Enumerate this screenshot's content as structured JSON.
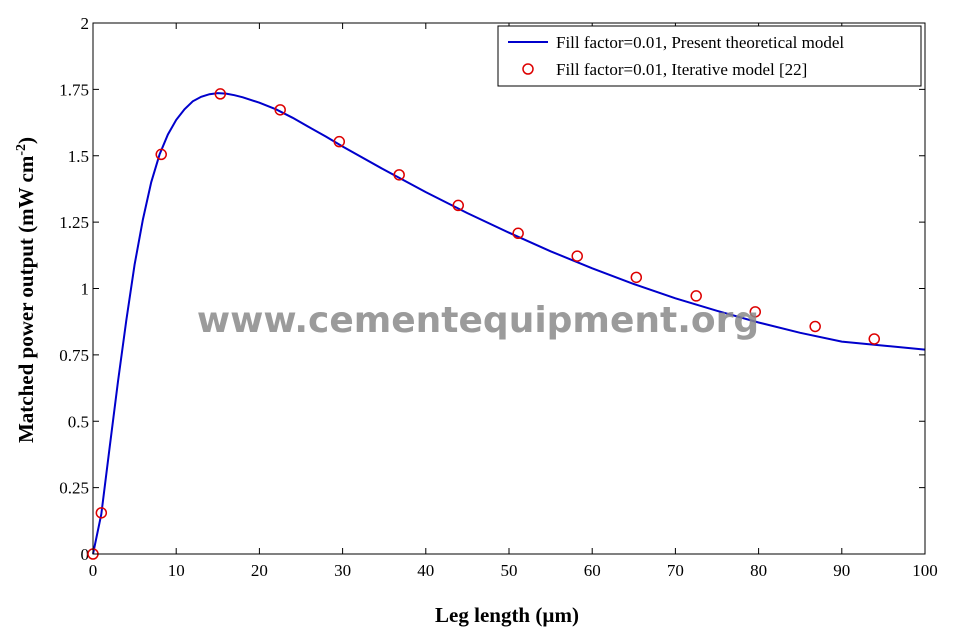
{
  "chart_data": {
    "type": "line",
    "xlabel": "Leg length (µm)",
    "ylabel_main": "Matched power output (mW cm",
    "ylabel_sup": "-2",
    "ylabel_close": ")",
    "xlim": [
      0,
      100
    ],
    "ylim": [
      0,
      2
    ],
    "xticks": [
      0,
      10,
      20,
      30,
      40,
      50,
      60,
      70,
      80,
      90,
      100
    ],
    "xtick_labels": [
      "0",
      "10",
      "20",
      "30",
      "40",
      "50",
      "60",
      "70",
      "80",
      "90",
      "100"
    ],
    "yticks": [
      0,
      0.25,
      0.5,
      0.75,
      1,
      1.25,
      1.5,
      1.75,
      2
    ],
    "ytick_labels": [
      "0",
      "0.25",
      "0.5",
      "0.75",
      "1",
      "1.25",
      "1.5",
      "1.75",
      "2"
    ],
    "grid": false,
    "legend_position": "top-right",
    "series": [
      {
        "name": "Fill factor=0.01, Present theoretical model",
        "style": "line",
        "color": "#0000cc",
        "x": [
          0,
          1,
          2,
          3,
          4,
          5,
          6,
          7,
          8,
          9,
          10,
          11,
          12,
          13,
          14,
          15,
          16,
          17,
          18,
          20,
          22,
          24,
          26,
          28,
          30,
          35,
          40,
          45,
          50,
          55,
          60,
          65,
          70,
          75,
          80,
          85,
          90,
          95,
          100
        ],
        "y": [
          0,
          0.15,
          0.4,
          0.65,
          0.88,
          1.09,
          1.26,
          1.4,
          1.505,
          1.58,
          1.635,
          1.675,
          1.705,
          1.722,
          1.732,
          1.736,
          1.734,
          1.728,
          1.72,
          1.7,
          1.675,
          1.643,
          1.607,
          1.572,
          1.535,
          1.447,
          1.363,
          1.284,
          1.21,
          1.14,
          1.076,
          1.017,
          0.963,
          0.916,
          0.872,
          0.833,
          0.8,
          0.785,
          0.77
        ]
      },
      {
        "name": "Fill factor=0.01, Iterative model [22]",
        "style": "marker",
        "color": "#dd0000",
        "x": [
          0,
          1,
          8.2,
          15.3,
          22.5,
          29.6,
          36.8,
          43.9,
          51.1,
          58.2,
          65.3,
          72.5,
          79.6,
          86.8,
          93.9
        ],
        "y": [
          0,
          0.155,
          1.505,
          1.733,
          1.673,
          1.553,
          1.428,
          1.313,
          1.208,
          1.122,
          1.042,
          0.972,
          0.912,
          0.857,
          0.81
        ]
      }
    ]
  },
  "watermark": "www.cementequipment.org"
}
